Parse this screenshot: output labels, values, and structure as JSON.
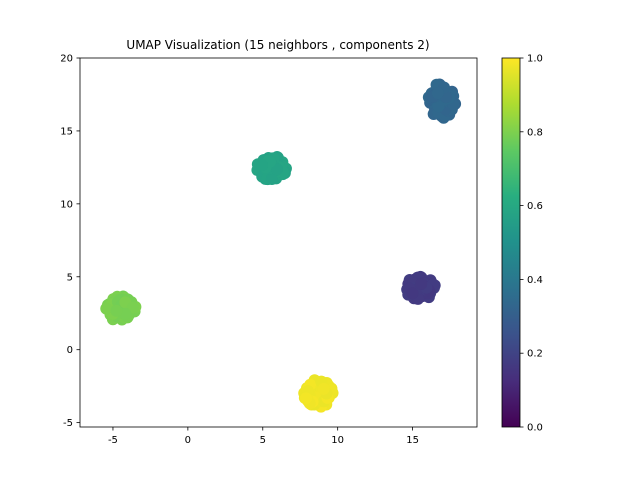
{
  "chart_data": {
    "type": "scatter",
    "title": "UMAP Visualization (15 neighbors , components 2)",
    "xlabel": "",
    "ylabel": "",
    "xlim": [
      -7.2,
      19.3
    ],
    "ylim": [
      -5.3,
      20
    ],
    "xticks": [
      -5,
      0,
      5,
      10,
      15
    ],
    "yticks": [
      -5,
      0,
      5,
      10,
      15,
      20
    ],
    "grid": false,
    "colormap": "viridis",
    "colorbar": {
      "min": 0.0,
      "max": 1.0,
      "ticks": [
        "0.0",
        "0.2",
        "0.4",
        "0.6",
        "0.8",
        "1.0"
      ]
    },
    "clusters": [
      {
        "center": [
          16.9,
          17.0
        ],
        "spread": [
          1.0,
          1.35
        ],
        "value": 0.33,
        "n": 130
      },
      {
        "center": [
          5.6,
          12.4
        ],
        "spread": [
          1.15,
          0.95
        ],
        "value": 0.58,
        "n": 130
      },
      {
        "center": [
          15.5,
          4.3
        ],
        "spread": [
          1.05,
          0.9
        ],
        "value": 0.17,
        "n": 130
      },
      {
        "center": [
          -4.5,
          2.8
        ],
        "spread": [
          1.05,
          1.0
        ],
        "value": 0.79,
        "n": 130
      },
      {
        "center": [
          8.7,
          -3.0
        ],
        "spread": [
          1.05,
          1.0
        ],
        "value": 0.98,
        "n": 130
      }
    ]
  }
}
